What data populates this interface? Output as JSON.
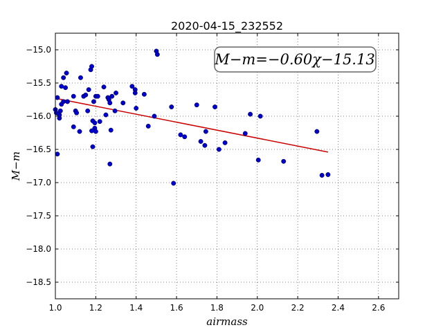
{
  "chart_data": {
    "type": "scatter",
    "title": "2020-04-15_232552",
    "xlabel": "airmass",
    "ylabel": "M−m",
    "xlim": [
      1.0,
      2.7
    ],
    "ylim": [
      -18.75,
      -14.75
    ],
    "y_inverted": false,
    "grid": true,
    "x_ticks": [
      1.0,
      1.2,
      1.4,
      1.6,
      1.8,
      2.0,
      2.2,
      2.4,
      2.6
    ],
    "x_tick_labels": [
      "1.0",
      "1.2",
      "1.4",
      "1.6",
      "1.8",
      "2.0",
      "2.2",
      "2.4",
      "2.6"
    ],
    "y_ticks": [
      -15.0,
      -15.5,
      -16.0,
      -16.5,
      -17.0,
      -17.5,
      -18.0,
      -18.5
    ],
    "y_tick_labels": [
      "−15.0",
      "−15.5",
      "−16.0",
      "−16.5",
      "−17.0",
      "−17.5",
      "−18.0",
      "−18.5"
    ],
    "point_color": "#0000cc",
    "fit_color": "#cc0000",
    "annotation": "M−m=−0.60χ−15.13",
    "fit": {
      "slope": -0.6,
      "intercept": -15.13,
      "x_range": [
        1.0,
        2.35
      ]
    },
    "points": [
      [
        1.0,
        -15.9
      ],
      [
        1.005,
        -15.95
      ],
      [
        1.01,
        -16.57
      ],
      [
        1.01,
        -15.72
      ],
      [
        1.02,
        -16.03
      ],
      [
        1.02,
        -15.98
      ],
      [
        1.025,
        -15.92
      ],
      [
        1.03,
        -15.55
      ],
      [
        1.03,
        -15.82
      ],
      [
        1.04,
        -15.78
      ],
      [
        1.04,
        -15.42
      ],
      [
        1.05,
        -15.57
      ],
      [
        1.055,
        -15.35
      ],
      [
        1.06,
        -15.78
      ],
      [
        1.09,
        -15.7
      ],
      [
        1.09,
        -16.16
      ],
      [
        1.1,
        -15.92
      ],
      [
        1.105,
        -15.95
      ],
      [
        1.12,
        -16.23
      ],
      [
        1.125,
        -15.42
      ],
      [
        1.14,
        -15.7
      ],
      [
        1.15,
        -15.68
      ],
      [
        1.16,
        -15.92
      ],
      [
        1.165,
        -15.6
      ],
      [
        1.175,
        -15.3
      ],
      [
        1.18,
        -15.25
      ],
      [
        1.18,
        -16.22
      ],
      [
        1.185,
        -16.07
      ],
      [
        1.185,
        -16.46
      ],
      [
        1.19,
        -15.78
      ],
      [
        1.195,
        -16.1
      ],
      [
        1.195,
        -16.18
      ],
      [
        1.2,
        -15.7
      ],
      [
        1.2,
        -16.23
      ],
      [
        1.21,
        -15.7
      ],
      [
        1.22,
        -16.08
      ],
      [
        1.24,
        -15.56
      ],
      [
        1.25,
        -15.98
      ],
      [
        1.26,
        -15.72
      ],
      [
        1.265,
        -15.75
      ],
      [
        1.27,
        -15.8
      ],
      [
        1.27,
        -16.72
      ],
      [
        1.275,
        -16.21
      ],
      [
        1.28,
        -15.7
      ],
      [
        1.295,
        -15.92
      ],
      [
        1.3,
        -15.65
      ],
      [
        1.335,
        -15.8
      ],
      [
        1.38,
        -15.55
      ],
      [
        1.395,
        -15.6
      ],
      [
        1.395,
        -15.65
      ],
      [
        1.4,
        -15.88
      ],
      [
        1.44,
        -15.67
      ],
      [
        1.46,
        -16.15
      ],
      [
        1.49,
        -16.0
      ],
      [
        1.5,
        -15.02
      ],
      [
        1.505,
        -15.07
      ],
      [
        1.575,
        -15.86
      ],
      [
        1.585,
        -17.01
      ],
      [
        1.62,
        -16.28
      ],
      [
        1.64,
        -16.31
      ],
      [
        1.7,
        -15.83
      ],
      [
        1.72,
        -16.38
      ],
      [
        1.74,
        -16.44
      ],
      [
        1.745,
        -16.23
      ],
      [
        1.79,
        -15.86
      ],
      [
        1.81,
        -16.5
      ],
      [
        1.84,
        -16.4
      ],
      [
        1.94,
        -16.26
      ],
      [
        1.965,
        -15.97
      ],
      [
        2.005,
        -16.66
      ],
      [
        2.015,
        -16.0
      ],
      [
        2.13,
        -16.68
      ],
      [
        2.295,
        -16.23
      ],
      [
        2.32,
        -16.89
      ],
      [
        2.35,
        -16.88
      ]
    ]
  }
}
